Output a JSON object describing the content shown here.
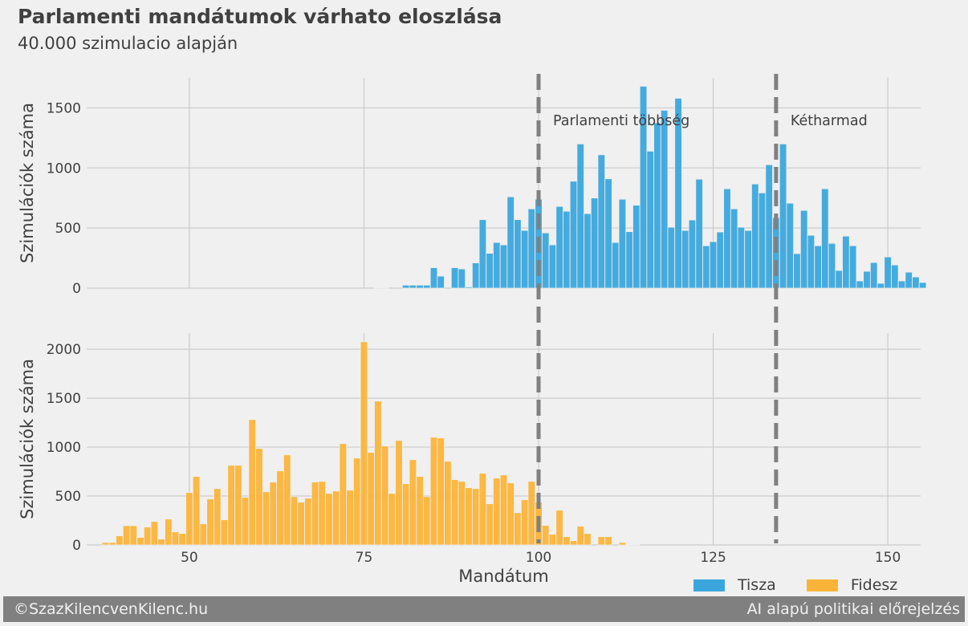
{
  "title": "Parlamenti mandátumok várhato eloszlása",
  "subtitle": "40.000 szimulacio alapján",
  "footer": {
    "left": "©SzazKilencvenKilenc.hu",
    "right": "AI alapú politikai előrejelzés"
  },
  "colors": {
    "Tisza": "#3ba6dc",
    "Fidesz": "#fbb43a",
    "background": "#f0f0f0",
    "threshold_line": "#808080",
    "footer": "#808080"
  },
  "chart_data": [
    {
      "type": "bar",
      "series_name": "Tisza",
      "ylabel": "Szimulációk száma",
      "xlim": [
        35.3,
        154.7
      ],
      "ylim": [
        0,
        1750
      ],
      "yticks": [
        0,
        500,
        1000,
        1500
      ],
      "xticks": [
        50,
        75,
        100,
        125,
        150
      ],
      "grid": true,
      "x": [
        77,
        78,
        81,
        82,
        83,
        84,
        85,
        86,
        88,
        89,
        90,
        91,
        92,
        93,
        94,
        95,
        96,
        97,
        98,
        99,
        100,
        101,
        102,
        103,
        104,
        105,
        106,
        107,
        108,
        109,
        110,
        111,
        112,
        113,
        114,
        115,
        116,
        117,
        118,
        119,
        120,
        121,
        122,
        123,
        124,
        125,
        126,
        127,
        128,
        129,
        130,
        131,
        132,
        133,
        134,
        135,
        136,
        137,
        138,
        139,
        140,
        141,
        142,
        143,
        144,
        145,
        146,
        147,
        148,
        149,
        150,
        151,
        152,
        153,
        154,
        155
      ],
      "values": [
        5,
        5,
        25,
        25,
        25,
        25,
        170,
        100,
        170,
        160,
        10,
        210,
        570,
        290,
        380,
        360,
        760,
        570,
        480,
        660,
        740,
        460,
        360,
        680,
        640,
        890,
        1200,
        620,
        750,
        1110,
        910,
        380,
        740,
        470,
        690,
        1680,
        1140,
        1375,
        1480,
        507,
        1580,
        480,
        567,
        907,
        353,
        387,
        467,
        827,
        660,
        507,
        480,
        867,
        793,
        1027,
        587,
        1200,
        707,
        287,
        647,
        440,
        353,
        827,
        373,
        147,
        433,
        353,
        60,
        140,
        213,
        40,
        260,
        193,
        60,
        133,
        93,
        47
      ],
      "annotations": [
        {
          "x": 100,
          "label": "Parlamenti többség"
        },
        {
          "x": 134,
          "label": "Kétharmad"
        }
      ]
    },
    {
      "type": "bar",
      "series_name": "Fidesz",
      "xlabel": "Mandátum",
      "ylabel": "Szimulációk száma",
      "xlim": [
        35.3,
        154.7
      ],
      "ylim": [
        0,
        2165
      ],
      "yticks": [
        0,
        500,
        1000,
        1500,
        2000
      ],
      "xticks": [
        50,
        75,
        100,
        125,
        150
      ],
      "xticklabels": [
        "50",
        "75",
        "100",
        "125",
        "150"
      ],
      "grid": true,
      "x": [
        38,
        39,
        40,
        41,
        42,
        43,
        44,
        45,
        46,
        47,
        48,
        49,
        50,
        51,
        52,
        53,
        54,
        55,
        56,
        57,
        58,
        59,
        60,
        61,
        62,
        63,
        64,
        65,
        66,
        67,
        68,
        69,
        70,
        71,
        72,
        73,
        74,
        75,
        76,
        77,
        78,
        79,
        80,
        81,
        82,
        83,
        84,
        85,
        86,
        87,
        88,
        89,
        90,
        91,
        92,
        93,
        94,
        95,
        96,
        97,
        98,
        99,
        100,
        101,
        102,
        103,
        104,
        105,
        106,
        107,
        109,
        110,
        112,
        113,
        114
      ],
      "values": [
        25,
        25,
        93,
        197,
        197,
        77,
        183,
        240,
        60,
        265,
        134,
        117,
        535,
        700,
        216,
        470,
        576,
        257,
        814,
        814,
        486,
        1281,
        986,
        543,
        642,
        757,
        921,
        494,
        437,
        478,
        643,
        650,
        527,
        552,
        1035,
        560,
        888,
        2076,
        945,
        1470,
        1011,
        527,
        1068,
        626,
        871,
        700,
        494,
        1101,
        1093,
        855,
        667,
        650,
        585,
        576,
        732,
        421,
        683,
        716,
        634,
        330,
        462,
        650,
        437,
        200,
        109,
        355,
        85,
        44,
        191,
        117,
        85,
        85,
        25,
        5,
        5
      ]
    }
  ],
  "legend": {
    "placement": "bottom-right",
    "entries": [
      "Tisza",
      "Fidesz"
    ]
  }
}
